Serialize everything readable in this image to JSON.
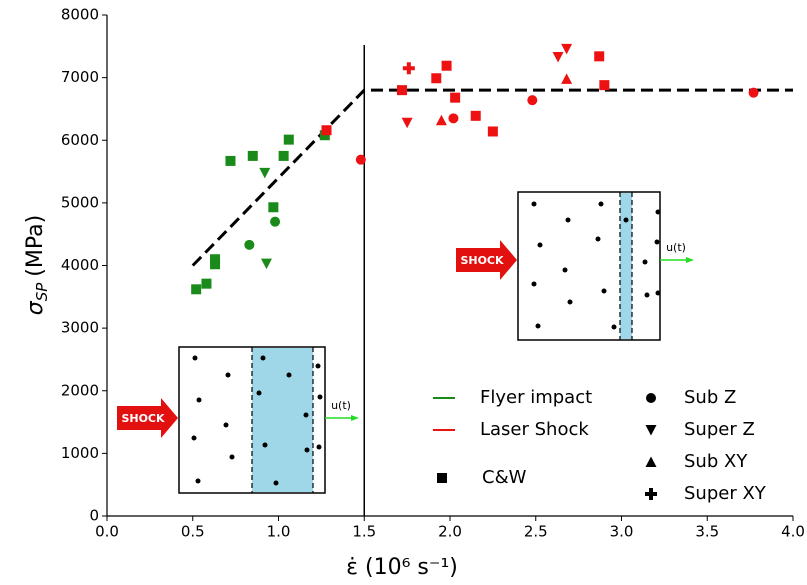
{
  "chart_data": {
    "type": "scatter",
    "x_label": "ε̇ (10⁶ s⁻¹)",
    "y_label": {
      "symbol": "σ",
      "subscript": "SP",
      "unit": "(MPa)"
    },
    "xlim": [
      0,
      4.0
    ],
    "ylim": [
      0,
      8000
    ],
    "xticks": [
      {
        "value": 0,
        "label": "0.0"
      },
      {
        "value": 0.5,
        "label": "0.5"
      },
      {
        "value": 1,
        "label": "1.0"
      },
      {
        "value": 1.5,
        "label": "1.5"
      },
      {
        "value": 2,
        "label": "2.0"
      },
      {
        "value": 2.5,
        "label": "2.5"
      },
      {
        "value": 3,
        "label": "3.0"
      },
      {
        "value": 3.5,
        "label": "3.5"
      },
      {
        "value": 4,
        "label": "4.0"
      }
    ],
    "yticks": [
      0,
      1000,
      2000,
      3000,
      4000,
      5000,
      6000,
      7000,
      8000
    ],
    "series": [
      {
        "color": "#1a8a1a",
        "marker": "square",
        "x": [
          0.52,
          0.58,
          0.63,
          0.63,
          0.72,
          0.85,
          0.97,
          1.03,
          1.06,
          1.27
        ],
        "values": [
          3620,
          3710,
          4020,
          4100,
          5670,
          5750,
          4930,
          5750,
          6010,
          6080
        ]
      },
      {
        "color": "#1a8a1a",
        "marker": "circle",
        "x": [
          0.83,
          0.98
        ],
        "values": [
          4330,
          4700
        ]
      },
      {
        "color": "#1a8a1a",
        "marker": "triangle-down",
        "x": [
          0.92,
          0.93
        ],
        "values": [
          5480,
          4030
        ]
      },
      {
        "color": "#ee1111",
        "marker": "square",
        "x": [
          1.28,
          1.72,
          1.92,
          1.98,
          2.03,
          2.15,
          2.25,
          2.87,
          2.9
        ],
        "values": [
          6160,
          6800,
          6990,
          7190,
          6680,
          6390,
          6140,
          7340,
          6880
        ]
      },
      {
        "color": "#ee1111",
        "marker": "circle",
        "x": [
          1.48,
          2.02,
          2.48,
          3.77
        ],
        "values": [
          5690,
          6350,
          6640,
          6760
        ]
      },
      {
        "color": "#ee1111",
        "marker": "triangle-down",
        "x": [
          1.75,
          2.63,
          2.68
        ],
        "values": [
          6280,
          7330,
          7460
        ]
      },
      {
        "color": "#ee1111",
        "marker": "triangle-up",
        "x": [
          1.95,
          2.68
        ],
        "values": [
          6320,
          6980
        ]
      },
      {
        "color": "#ee1111",
        "marker": "plus",
        "x": [
          1.76
        ],
        "values": [
          7150
        ]
      }
    ],
    "lines": [
      {
        "x": [
          0.5,
          1.5,
          4.0
        ],
        "values": [
          4000,
          6800,
          6800
        ],
        "color": "#000000",
        "style": "dashed"
      },
      {
        "x": [
          1.5,
          1.5
        ],
        "values": [
          0,
          7520
        ],
        "color": "#000000",
        "style": "solid"
      }
    ],
    "legend": {
      "colors": [
        {
          "name": "Flyer impact",
          "color": "#1a8a1a"
        },
        {
          "name": "Laser Shock",
          "color": "#ee1111"
        }
      ],
      "markers": [
        {
          "name": "C&W",
          "marker": "square"
        },
        {
          "name": "Sub Z",
          "marker": "circle"
        },
        {
          "name": "Super Z",
          "marker": "triangle-down"
        },
        {
          "name": "Sub XY",
          "marker": "triangle-up"
        },
        {
          "name": "Super XY",
          "marker": "plus"
        }
      ]
    },
    "insets": [
      {
        "arrow_label": "SHOCK",
        "velocity_label": "u(t)"
      },
      {
        "arrow_label": "SHOCK",
        "velocity_label": "u(t)"
      }
    ]
  }
}
